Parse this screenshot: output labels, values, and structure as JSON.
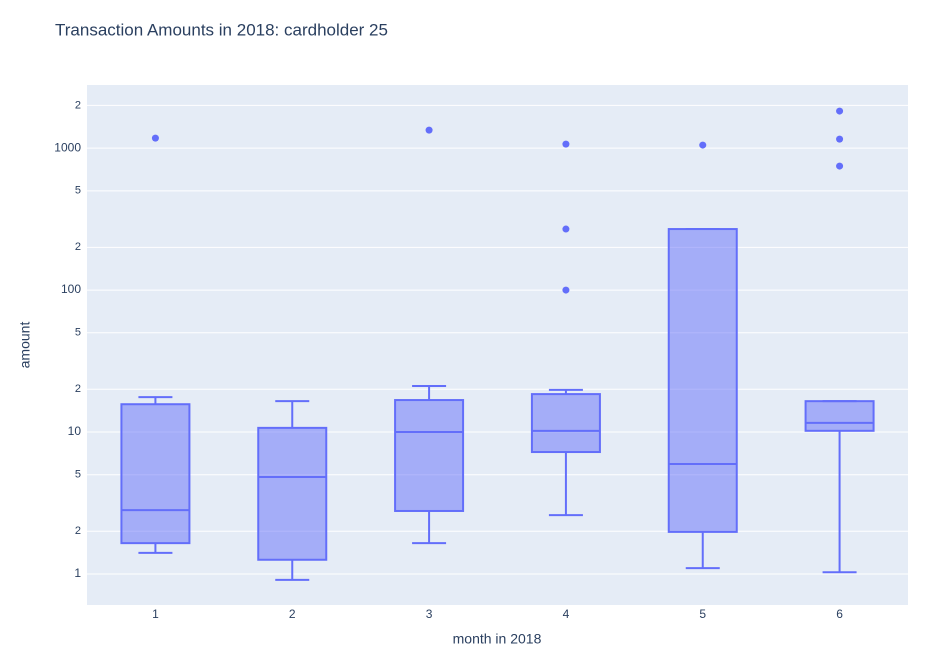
{
  "chart_data": {
    "type": "box",
    "title": "Transaction Amounts in 2018: cardholder 25",
    "xlabel": "month in 2018",
    "ylabel": "amount",
    "categories": [
      "1",
      "2",
      "3",
      "4",
      "5",
      "6"
    ],
    "color": "#636efa",
    "log_y": true,
    "grid": true,
    "ylim": [
      0.605,
      2782
    ],
    "yticks": [
      1,
      {
        "value": 2,
        "label": "2"
      },
      {
        "value": 5,
        "label": "5"
      },
      10,
      {
        "value": 20,
        "label": "2"
      },
      {
        "value": 50,
        "label": "5"
      },
      100,
      {
        "value": 200,
        "label": "2"
      },
      {
        "value": 500,
        "label": "5"
      },
      1000,
      {
        "value": 2000,
        "label": "2"
      }
    ],
    "boxes": [
      {
        "lower": 1.41,
        "q1": 1.65,
        "median": 2.82,
        "q3": 15.7,
        "upper": 17.6,
        "outliers": [
          1175
        ]
      },
      {
        "lower": 0.91,
        "q1": 1.26,
        "median": 4.82,
        "q3": 10.7,
        "upper": 16.5,
        "outliers": []
      },
      {
        "lower": 1.65,
        "q1": 2.78,
        "median": 10.0,
        "q3": 16.8,
        "upper": 21.1,
        "outliers": [
          1339
        ]
      },
      {
        "lower": 2.6,
        "q1": 7.23,
        "median": 10.2,
        "q3": 18.5,
        "upper": 19.8,
        "outliers": [
          1067,
          269,
          100
        ]
      },
      {
        "lower": 1.1,
        "q1": 1.98,
        "median": 5.95,
        "q3": 269,
        "upper": 269,
        "outliers": [
          1050
        ]
      },
      {
        "lower": 1.03,
        "q1": 10.2,
        "median": 11.6,
        "q3": 16.5,
        "upper": 16.5,
        "outliers": [
          1823,
          1157,
          747
        ]
      }
    ]
  }
}
